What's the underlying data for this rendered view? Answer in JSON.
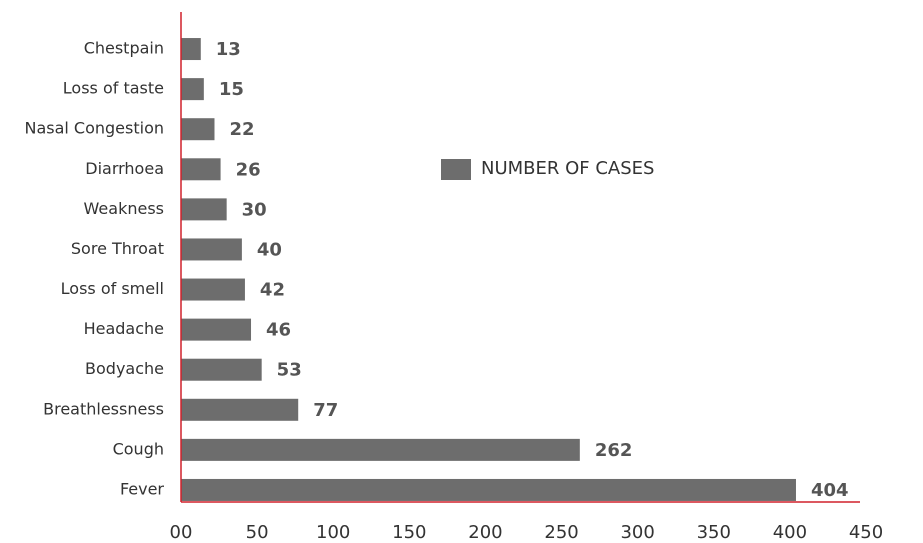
{
  "chart_data": {
    "type": "bar",
    "orientation": "horizontal",
    "categories": [
      "Chestpain",
      "Loss of taste",
      "Nasal Congestion",
      "Diarrhoea",
      "Weakness",
      "Sore Throat",
      "Loss of smell",
      "Headache",
      "Bodyache",
      "Breathlessness",
      "Cough",
      "Fever"
    ],
    "series": [
      {
        "name": "NUMBER OF CASES",
        "color": "#6d6d6d",
        "values": [
          13,
          15,
          22,
          26,
          30,
          40,
          42,
          46,
          53,
          77,
          262,
          404
        ]
      }
    ],
    "xlim": [
      0,
      450
    ],
    "xticks": [
      {
        "value": 0,
        "label": "00"
      },
      50,
      100,
      150,
      200,
      250,
      300,
      350,
      400,
      450
    ],
    "axis_color": "#d0212b",
    "grid": false
  }
}
